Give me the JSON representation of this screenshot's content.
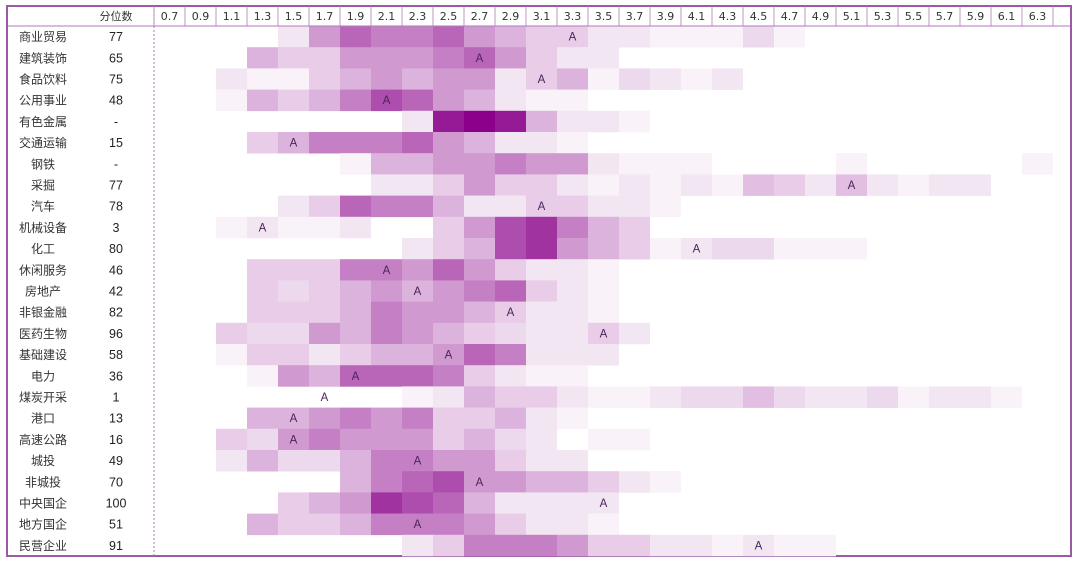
{
  "chart_data": {
    "type": "heatmap",
    "percentile_header": "分位数",
    "x": [
      "0.7",
      "0.9",
      "1.1",
      "1.3",
      "1.5",
      "1.7",
      "1.9",
      "2.1",
      "2.3",
      "2.5",
      "2.7",
      "2.9",
      "3.1",
      "3.3",
      "3.5",
      "3.7",
      "3.9",
      "4.1",
      "4.3",
      "4.5",
      "4.7",
      "4.9",
      "5.1",
      "5.3",
      "5.5",
      "5.7",
      "5.9",
      "6.1",
      "6.3"
    ],
    "marker_symbol": "A",
    "color_scale": {
      "low": "#ffffff",
      "high": "#8a008a"
    },
    "rows": [
      {
        "name": "商业贸易",
        "percentile": "77",
        "marker": "3.3",
        "values": [
          0,
          0,
          0,
          0,
          1,
          4,
          6,
          5,
          5,
          6,
          4,
          3,
          2,
          2,
          1,
          1,
          0.5,
          0.5,
          0.5,
          1.5,
          0.5,
          0,
          0,
          0,
          0,
          0,
          0,
          0,
          0
        ]
      },
      {
        "name": "建筑装饰",
        "percentile": "65",
        "marker": "2.7",
        "values": [
          0,
          0,
          0,
          3,
          2,
          2,
          4,
          4,
          4,
          5,
          6,
          4,
          2,
          1,
          1,
          0,
          0,
          0,
          0,
          0,
          0,
          0,
          0,
          0,
          0,
          0,
          0,
          0,
          0
        ]
      },
      {
        "name": "食品饮料",
        "percentile": "75",
        "marker": "3.1",
        "values": [
          0,
          0,
          1,
          0.5,
          0.5,
          2,
          3,
          4,
          3,
          4,
          4,
          1,
          2,
          3,
          0.5,
          1.5,
          1,
          0.5,
          1,
          0,
          0,
          0,
          0,
          0,
          0,
          0,
          0,
          0,
          0
        ]
      },
      {
        "name": "公用事业",
        "percentile": "48",
        "marker": "2.1",
        "values": [
          0,
          0,
          0.5,
          3,
          2,
          3,
          5,
          7,
          6,
          4,
          3,
          1,
          0.5,
          0.5,
          0,
          0,
          0,
          0,
          0,
          0,
          0,
          0,
          0,
          0,
          0,
          0,
          0,
          0,
          0
        ]
      },
      {
        "name": "有色金属",
        "percentile": "-",
        "marker": "",
        "values": [
          0,
          0,
          0,
          0,
          0,
          0,
          0,
          0,
          1,
          9,
          10,
          9,
          3,
          1,
          1,
          0.5,
          0,
          0,
          0,
          0,
          0,
          0,
          0,
          0,
          0,
          0,
          0,
          0,
          0
        ]
      },
      {
        "name": "交通运输",
        "percentile": "15",
        "marker": "1.5",
        "values": [
          0,
          0,
          0,
          2,
          3,
          5,
          5,
          5,
          6,
          4,
          3,
          1,
          1,
          0.5,
          0,
          0,
          0,
          0,
          0,
          0,
          0,
          0,
          0,
          0,
          0,
          0,
          0,
          0,
          0
        ]
      },
      {
        "name": "钢铁",
        "percentile": "-",
        "marker": "",
        "values": [
          0,
          0,
          0,
          0,
          0,
          0,
          0.5,
          3,
          3,
          4,
          4,
          5,
          4,
          4,
          1,
          0.5,
          0.5,
          0.5,
          0,
          0,
          0,
          0,
          0.5,
          0,
          0,
          0,
          0,
          0,
          0.5
        ]
      },
      {
        "name": "采掘",
        "percentile": "77",
        "marker": "5.1",
        "values": [
          0,
          0,
          0,
          0,
          0,
          0,
          0,
          1,
          1,
          2,
          4,
          2,
          2,
          1,
          0.5,
          1,
          0.5,
          1,
          0.5,
          2.5,
          2,
          1,
          2.5,
          1,
          0.5,
          1,
          1,
          0,
          0
        ]
      },
      {
        "name": "汽车",
        "percentile": "78",
        "marker": "3.1",
        "values": [
          0,
          0,
          0,
          0,
          1,
          2,
          6,
          5,
          5,
          3,
          1,
          1,
          2,
          2,
          1,
          1,
          0.5,
          0,
          0,
          0,
          0,
          0,
          0,
          0,
          0,
          0,
          0,
          0,
          0
        ]
      },
      {
        "name": "机械设备",
        "percentile": "3",
        "marker": "1.3",
        "values": [
          0,
          0,
          0.5,
          1,
          0.5,
          0.5,
          1,
          0,
          0,
          2,
          4,
          7,
          8,
          5,
          3,
          2,
          0,
          0,
          0,
          0,
          0,
          0,
          0,
          0,
          0,
          0,
          0,
          0,
          0
        ]
      },
      {
        "name": "化工",
        "percentile": "80",
        "marker": "4.1",
        "values": [
          0,
          0,
          0,
          0,
          0,
          0,
          0,
          0,
          1,
          2,
          3,
          7,
          8,
          4,
          3,
          2,
          0.5,
          1,
          1.5,
          1.5,
          0.5,
          0.5,
          0.5,
          0,
          0,
          0,
          0,
          0,
          0
        ]
      },
      {
        "name": "休闲服务",
        "percentile": "46",
        "marker": "2.1",
        "values": [
          0,
          0,
          0,
          2,
          2,
          2,
          5,
          5,
          4,
          6,
          4,
          2,
          1,
          1,
          0.5,
          0,
          0,
          0,
          0,
          0,
          0,
          0,
          0,
          0,
          0,
          0,
          0,
          0,
          0
        ]
      },
      {
        "name": "房地产",
        "percentile": "42",
        "marker": "2.3",
        "values": [
          0,
          0,
          0,
          2,
          1.5,
          2,
          3,
          4,
          3,
          4,
          5,
          6,
          2,
          1,
          0.5,
          0,
          0,
          0,
          0,
          0,
          0,
          0,
          0,
          0,
          0,
          0,
          0,
          0,
          0
        ]
      },
      {
        "name": "非银金融",
        "percentile": "82",
        "marker": "2.9",
        "values": [
          0,
          0,
          0,
          2,
          2,
          2,
          3,
          5,
          4,
          4,
          3,
          2,
          1,
          1,
          0.5,
          0,
          0,
          0,
          0,
          0,
          0,
          0,
          0,
          0,
          0,
          0,
          0,
          0,
          0
        ]
      },
      {
        "name": "医药生物",
        "percentile": "96",
        "marker": "3.5",
        "values": [
          0,
          0,
          2,
          1.5,
          1.5,
          4,
          3,
          5,
          4,
          3,
          2,
          1.5,
          1,
          1,
          2,
          1,
          0,
          0,
          0,
          0,
          0,
          0,
          0,
          0,
          0,
          0,
          0,
          0,
          0
        ]
      },
      {
        "name": "基础建设",
        "percentile": "58",
        "marker": "2.5",
        "values": [
          0,
          0,
          0.5,
          2,
          2,
          1,
          2,
          3,
          3,
          4,
          6,
          5,
          1,
          1,
          1,
          0,
          0,
          0,
          0,
          0,
          0,
          0,
          0,
          0,
          0,
          0,
          0,
          0,
          0
        ]
      },
      {
        "name": "电力",
        "percentile": "36",
        "marker": "1.9",
        "values": [
          0,
          0,
          0,
          0.5,
          4,
          3,
          6,
          6,
          6,
          5,
          2,
          1,
          0.5,
          0.5,
          0,
          0,
          0,
          0,
          0,
          0,
          0,
          0,
          0,
          0,
          0,
          0,
          0,
          0,
          0
        ]
      },
      {
        "name": "煤炭开采",
        "percentile": "1",
        "marker": "1.7",
        "values": [
          0,
          0,
          0,
          0,
          0,
          0,
          0,
          0,
          0.5,
          1,
          3,
          2,
          2,
          1,
          0.5,
          0.5,
          1,
          1.5,
          1.5,
          2.5,
          1.5,
          1,
          1,
          1.5,
          0.5,
          1,
          1,
          0.5,
          0
        ]
      },
      {
        "name": "港口",
        "percentile": "13",
        "marker": "1.5",
        "values": [
          0,
          0,
          0,
          3,
          3,
          4,
          5,
          4,
          5,
          2,
          2,
          3,
          1,
          0.5,
          0,
          0,
          0,
          0,
          0,
          0,
          0,
          0,
          0,
          0,
          0,
          0,
          0,
          0,
          0
        ]
      },
      {
        "name": "高速公路",
        "percentile": "16",
        "marker": "1.5",
        "values": [
          0,
          0,
          2,
          1.5,
          4,
          5,
          4,
          4,
          4,
          2,
          3,
          1.5,
          1,
          0,
          0.5,
          0.5,
          0,
          0,
          0,
          0,
          0,
          0,
          0,
          0,
          0,
          0,
          0,
          0,
          0
        ]
      },
      {
        "name": "城投",
        "percentile": "49",
        "marker": "2.3",
        "values": [
          0,
          0,
          1,
          3,
          1.5,
          1.5,
          3,
          5,
          5,
          4,
          4,
          2,
          1,
          1,
          0,
          0,
          0,
          0,
          0,
          0,
          0,
          0,
          0,
          0,
          0,
          0,
          0,
          0,
          0
        ]
      },
      {
        "name": "非城投",
        "percentile": "70",
        "marker": "2.7",
        "values": [
          0,
          0,
          0,
          0,
          0,
          0,
          3,
          5,
          6,
          7,
          4,
          4,
          3,
          3,
          2,
          1,
          0.5,
          0,
          0,
          0,
          0,
          0,
          0,
          0,
          0,
          0,
          0,
          0,
          0
        ]
      },
      {
        "name": "中央国企",
        "percentile": "100",
        "marker": "3.5",
        "values": [
          0,
          0,
          0,
          0,
          2,
          3,
          4,
          8,
          7,
          6,
          3,
          1,
          1,
          1,
          1,
          0,
          0,
          0,
          0,
          0,
          0,
          0,
          0,
          0,
          0,
          0,
          0,
          0,
          0
        ]
      },
      {
        "name": "地方国企",
        "percentile": "51",
        "marker": "2.3",
        "values": [
          0,
          0,
          0,
          3,
          2,
          2,
          3,
          5,
          5,
          5,
          4,
          2,
          1,
          1,
          0.5,
          0,
          0,
          0,
          0,
          0,
          0,
          0,
          0,
          0,
          0,
          0,
          0,
          0,
          0
        ]
      },
      {
        "name": "民营企业",
        "percentile": "91",
        "marker": "4.5",
        "values": [
          0,
          0,
          0,
          0,
          0,
          0,
          0,
          0,
          1,
          2,
          5,
          5,
          5,
          4,
          2,
          2,
          1,
          1,
          0.5,
          1,
          0.5,
          0.5,
          0,
          0,
          0,
          0,
          0,
          0,
          0
        ]
      }
    ]
  }
}
